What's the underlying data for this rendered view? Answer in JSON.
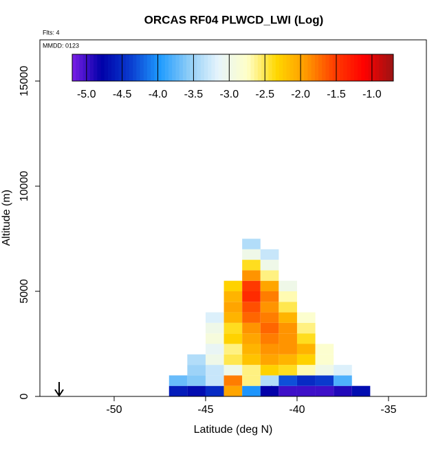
{
  "chart_data": {
    "type": "heatmap",
    "title": "ORCAS RF04 PLWCD_LWI (Log)",
    "annotations": [
      "Flts: 4",
      "MMDD: 0123"
    ],
    "xlabel": "Latitude (deg N)",
    "ylabel": "Altitude (m)",
    "xlim": [
      -54.06,
      -32.93
    ],
    "xticks": [
      -50,
      -45,
      -40,
      -35
    ],
    "ylim": [
      0,
      16960
    ],
    "yticks": [
      0,
      5000,
      10000,
      15000
    ],
    "xbins": [
      -47,
      -46,
      -45,
      -44,
      -43,
      -42,
      -41,
      -40,
      -39,
      -38,
      -37,
      -36
    ],
    "ybins": [
      0,
      500,
      1000,
      1500,
      2000,
      2500,
      3000,
      3500,
      4000,
      4500,
      5000,
      5500,
      6000,
      6500,
      7000,
      7500
    ],
    "z": [
      [
        -4.6,
        -4.7,
        -4.5,
        -2.0,
        -4.0,
        -4.8,
        -5.0,
        -5.0,
        -5.0,
        -4.9,
        -4.7
      ],
      [
        -3.7,
        -3.6,
        -3.3,
        -1.8,
        -2.6,
        -3.4,
        -4.3,
        -4.5,
        -4.4,
        -3.8,
        null
      ],
      [
        null,
        -3.5,
        -3.3,
        -3.0,
        -2.6,
        -2.3,
        -2.4,
        -2.7,
        -3.0,
        -3.2,
        null
      ],
      [
        null,
        -3.4,
        -3.0,
        -2.5,
        -2.2,
        -2.0,
        -2.1,
        -2.3,
        -2.8,
        null,
        null
      ],
      [
        null,
        null,
        -3.1,
        -2.6,
        -2.1,
        -1.9,
        -1.9,
        -2.1,
        -2.8,
        null,
        null
      ],
      [
        null,
        null,
        -2.9,
        -2.3,
        -2.0,
        -1.8,
        -1.9,
        -2.4,
        null,
        null,
        null
      ],
      [
        null,
        null,
        -3.0,
        -2.4,
        -1.9,
        -1.7,
        -1.9,
        -2.6,
        null,
        null,
        null
      ],
      [
        null,
        null,
        -3.2,
        -2.1,
        -1.7,
        -1.8,
        -2.1,
        -2.8,
        null,
        null,
        null
      ],
      [
        null,
        null,
        null,
        -2.0,
        -1.6,
        -1.9,
        -2.5,
        null,
        null,
        null,
        null
      ],
      [
        null,
        null,
        null,
        -2.1,
        -1.4,
        -1.8,
        -2.7,
        null,
        null,
        null,
        null
      ],
      [
        null,
        null,
        null,
        -2.3,
        -1.5,
        -2.0,
        -3.0,
        null,
        null,
        null,
        null
      ],
      [
        null,
        null,
        null,
        null,
        -1.9,
        -2.6,
        null,
        null,
        null,
        null,
        null
      ],
      [
        null,
        null,
        null,
        null,
        -2.4,
        -3.0,
        null,
        null,
        null,
        null,
        null
      ],
      [
        null,
        null,
        null,
        null,
        -3.0,
        -3.3,
        null,
        null,
        null,
        null,
        null
      ],
      [
        null,
        null,
        null,
        null,
        -3.4,
        null,
        null,
        null,
        null,
        null,
        null
      ]
    ],
    "colors": [
      "#7a1fe6",
      "#0000a8",
      "#0a3ccf",
      "#1e9bff",
      "#8fcdf7",
      "#e6f4fc",
      "#ffffc8",
      "#ffd700",
      "#ff9a00",
      "#ff3c00",
      "#ff0000",
      "#9a1414"
    ],
    "clim": [
      -5.2,
      -0.7
    ],
    "cticks": [
      {
        "value": -5,
        "label": "-5.0"
      },
      {
        "value": -4.5,
        "label": "-4.5"
      },
      {
        "value": -4,
        "label": "-4.0"
      },
      {
        "value": -3.5,
        "label": "-3.5"
      },
      {
        "value": -3,
        "label": "-3.0"
      },
      {
        "value": -2.5,
        "label": "-2.5"
      },
      {
        "value": -2,
        "label": "-2.0"
      },
      {
        "value": -1.5,
        "label": "-1.5"
      },
      {
        "value": -1,
        "label": "-1.0"
      }
    ]
  }
}
